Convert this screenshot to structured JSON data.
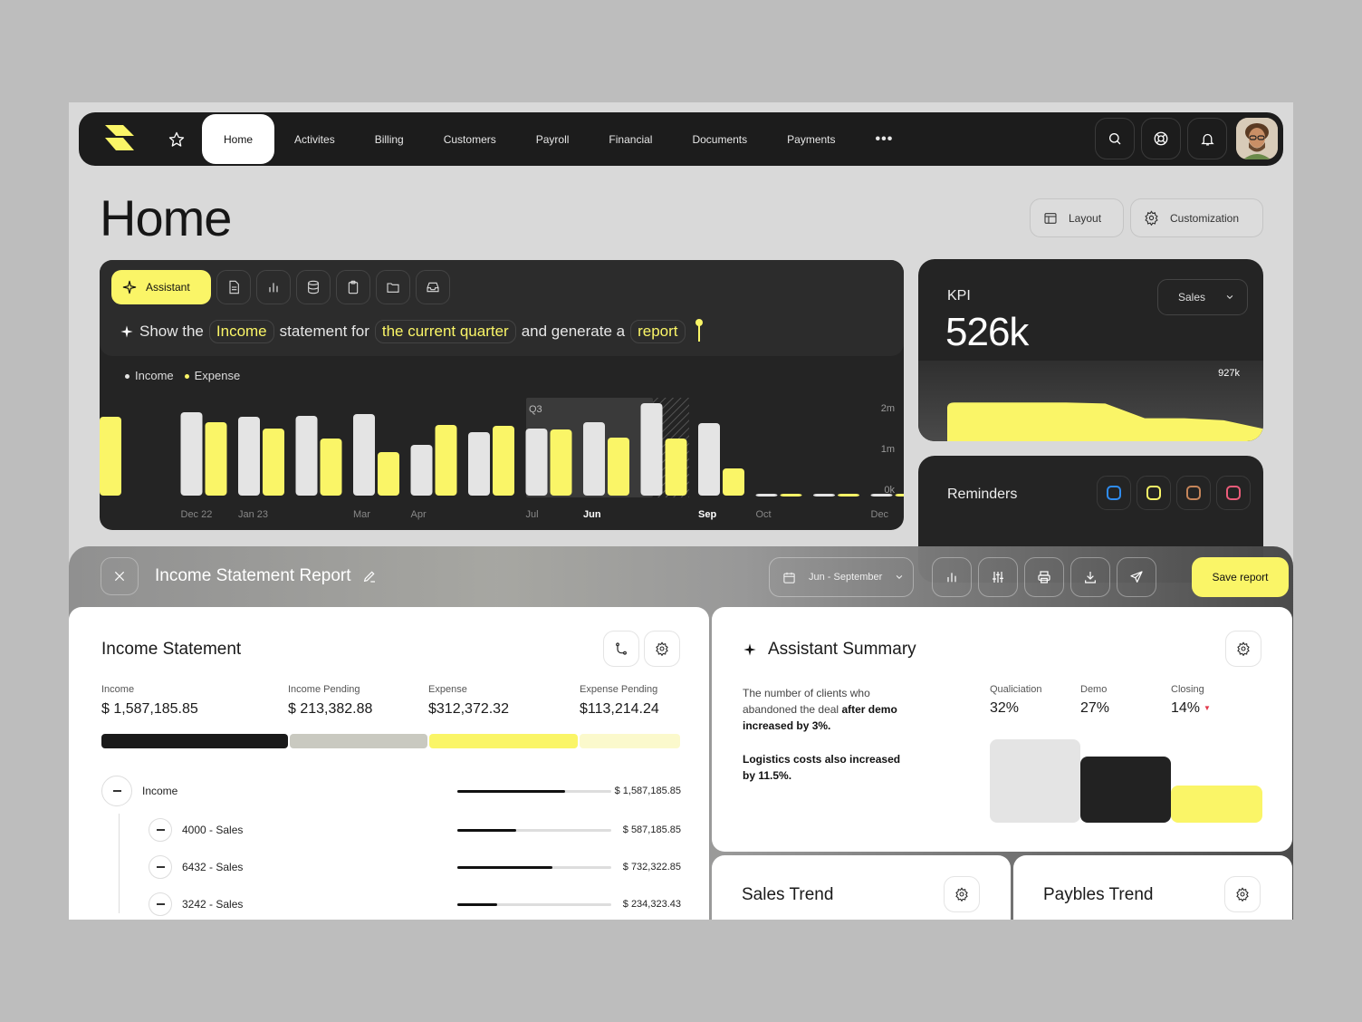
{
  "nav": {
    "items": [
      "Home",
      "Activites",
      "Billing",
      "Customers",
      "Payroll",
      "Financial",
      "Documents",
      "Payments"
    ],
    "more": "•••"
  },
  "header": {
    "title": "Home",
    "layout_label": "Layout",
    "customization_label": "Customization"
  },
  "assistant": {
    "button_label": "Assistant",
    "prompt": {
      "part1": "Show the",
      "chip1": "Income",
      "part2": "statement for",
      "chip2": "the current quarter",
      "part3": "and generate a",
      "chip3": "report"
    },
    "legend": {
      "income": "Income",
      "expense": "Expense"
    }
  },
  "chart_data": {
    "type": "bar",
    "series": [
      {
        "name": "Income",
        "color": "#e4e4e4",
        "values": [
          null,
          0.92,
          0.87,
          0.88,
          0.9,
          0.56,
          0.7,
          0.74,
          0.81,
          1.02,
          0.8,
          0.02,
          0.02,
          0.02
        ]
      },
      {
        "name": "Expense",
        "color": "#faf567",
        "values": [
          0.87,
          0.81,
          0.74,
          0.63,
          0.48,
          0.78,
          0.77,
          0.73,
          0.64,
          0.63,
          0.3,
          0.02,
          0.02,
          0.02
        ]
      }
    ],
    "x_labels": [
      "",
      "Dec 22",
      "Jan 23",
      "",
      "Mar",
      "Apr",
      "",
      "Jul",
      "Jun",
      "",
      "Sep",
      "Oct",
      "",
      "Dec"
    ],
    "highlighted_x_labels": [
      "Jun",
      "Sep"
    ],
    "y_ticks": [
      "2m",
      "1m",
      "0k"
    ],
    "ylim": [
      0,
      2
    ],
    "highlight_label": "Q3"
  },
  "kpi": {
    "label": "KPI",
    "value": "526k",
    "select": "Sales",
    "peak_label": "927k",
    "trend": [
      0.6,
      0.6,
      0.6,
      0.6,
      0.58,
      0.3,
      0.3,
      0.26,
      0.1
    ]
  },
  "reminders": {
    "title": "Reminders",
    "colors": [
      "#2f8cf0",
      "#faf567",
      "#c6855a",
      "#ec5c7a"
    ]
  },
  "report": {
    "title": "Income Statement Report",
    "date_range": "Jun - September",
    "save_label": "Save report"
  },
  "income_statement": {
    "title": "Income Statement",
    "stats": [
      {
        "label": "Income",
        "value": "$ 1,587,185.85"
      },
      {
        "label": "Income Pending",
        "value": "$ 213,382.88"
      },
      {
        "label": "Expense",
        "value": "$312,372.32"
      },
      {
        "label": "Expense Pending",
        "value": "$113,214.24"
      }
    ],
    "segments": [
      {
        "share": 0.325,
        "color": "#1a1a1a"
      },
      {
        "share": 0.24,
        "color": "#c9c9c0"
      },
      {
        "share": 0.26,
        "color": "#faf567"
      },
      {
        "share": 0.175,
        "color": "#fbf9cc"
      }
    ],
    "rows": [
      {
        "label": "Income",
        "amount": "$ 1,587,185.85",
        "level": 0.7
      },
      {
        "label": "4000 - Sales",
        "amount": "$ 587,185.85",
        "level": 0.38
      },
      {
        "label": "6432 - Sales",
        "amount": "$ 732,322.85",
        "level": 0.62
      },
      {
        "label": "3242 - Sales",
        "amount": "$ 234,323.43",
        "level": 0.26
      }
    ]
  },
  "summary": {
    "title": "Assistant Summary",
    "text1_plain": "The number of clients who abandoned the deal",
    "text1_bold": "after demo increased by 3%.",
    "text2_bold": "Logistics costs also increased by 11.5%.",
    "metrics": [
      {
        "label": "Qualiciation",
        "value": "32%"
      },
      {
        "label": "Demo",
        "value": "27%"
      },
      {
        "label": "Closing",
        "value": "14%"
      }
    ],
    "closing_trend_marker": "▼"
  },
  "sales_trend": {
    "title": "Sales Trend"
  },
  "paybles_trend": {
    "title": "Paybles Trend"
  }
}
